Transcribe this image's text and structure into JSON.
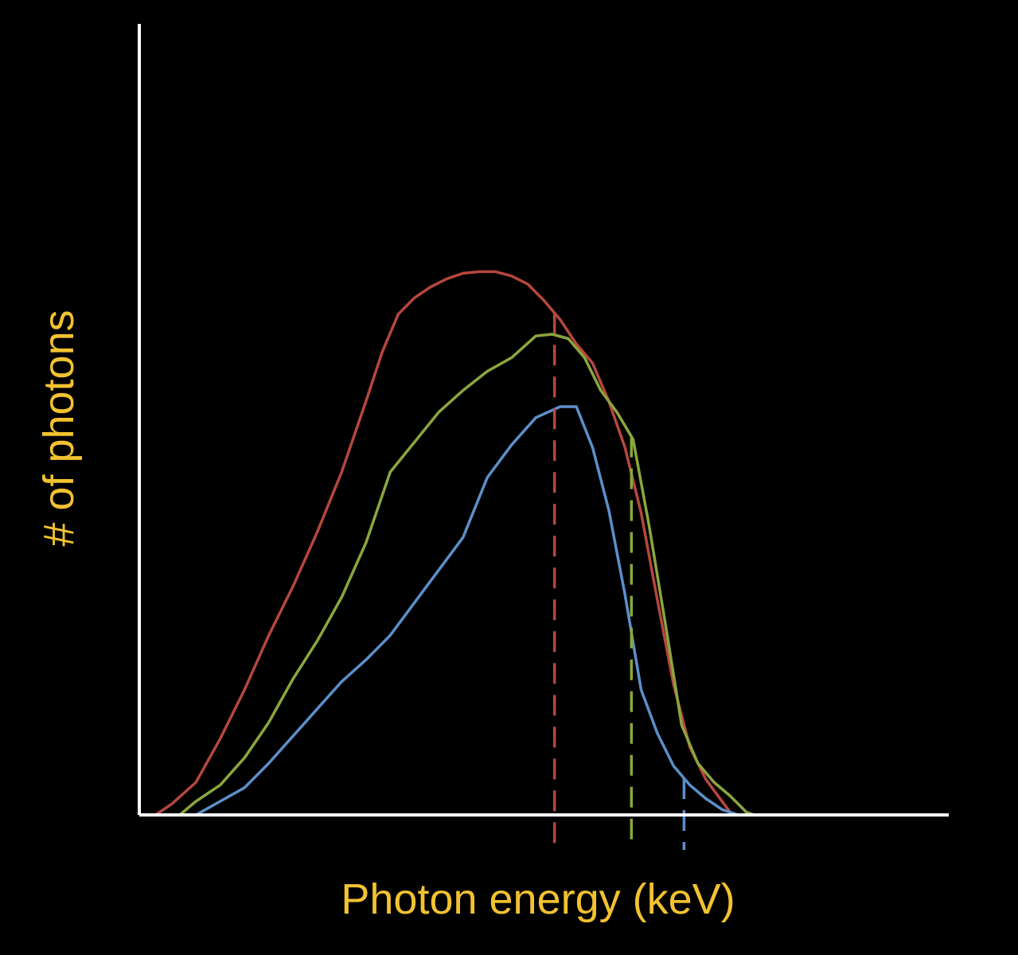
{
  "chart_data": {
    "type": "line",
    "title": "",
    "xlabel": "Photon energy (keV)",
    "ylabel": "# of photons",
    "xlim": [
      0,
      100
    ],
    "ylim": [
      0,
      100
    ],
    "x_ticks_shown": false,
    "y_ticks_shown": false,
    "grid": false,
    "legend": "none",
    "colors": {
      "background": "#000000",
      "axes": "#ffffff",
      "axis_label": "#f2c230"
    },
    "series": [
      {
        "color": "#b5473f",
        "x": [
          2,
          4,
          7,
          10,
          13,
          16,
          19,
          22,
          25,
          28,
          30,
          32,
          34,
          36,
          38,
          40,
          42,
          44,
          46,
          48,
          50,
          52,
          54,
          56,
          58,
          60,
          62,
          64,
          66,
          68,
          70,
          72,
          73,
          74,
          75,
          76,
          77,
          78,
          79,
          80,
          81,
          82,
          83,
          84,
          86,
          88,
          90,
          92,
          94,
          96
        ],
        "values": [
          0,
          2,
          6,
          14,
          23,
          33,
          42,
          52,
          63,
          76,
          85,
          92,
          95,
          97,
          98.5,
          99.5,
          99.8,
          99.8,
          99,
          97.5,
          94.5,
          91,
          86.5,
          83,
          76,
          67.5,
          55.5,
          39.5,
          24,
          12.5,
          6.5,
          2.5,
          0.5,
          0,
          0,
          0,
          0,
          0,
          0,
          0,
          0,
          0,
          0,
          0,
          0,
          0,
          0,
          0,
          0,
          0
        ],
        "mean_energy": 51.3
      },
      {
        "color": "#8ba63d",
        "x": [
          5,
          7,
          10,
          13,
          16,
          19,
          22,
          25,
          28,
          31,
          34,
          37,
          40,
          43,
          46,
          49,
          51,
          53,
          55,
          57,
          59,
          61,
          63,
          65,
          67,
          69,
          71,
          73,
          74,
          75,
          76,
          77,
          78,
          79,
          80,
          81,
          82,
          83,
          84,
          86,
          88,
          90,
          92,
          94,
          95,
          96
        ],
        "values": [
          0,
          2.5,
          5.5,
          10.5,
          17,
          25,
          32,
          40,
          50,
          63,
          68.5,
          74,
          78,
          81.5,
          84,
          88,
          88.3,
          87.5,
          84,
          78,
          74,
          69,
          53,
          35,
          16.5,
          9.5,
          6,
          3.5,
          2,
          0.5,
          0,
          0,
          0,
          0,
          0,
          0,
          0,
          0,
          0,
          0,
          0,
          0,
          0,
          0,
          0,
          0
        ],
        "mean_energy": 60.8
      },
      {
        "color": "#5b8fc9",
        "x": [
          2,
          7,
          10,
          13,
          16,
          19,
          22,
          25,
          28,
          31,
          34,
          37,
          40,
          43,
          46,
          49,
          52,
          54,
          56,
          58,
          60,
          62,
          64,
          66,
          68,
          70,
          72,
          74,
          76,
          78,
          80,
          82,
          84,
          86,
          88,
          90,
          92,
          94,
          95
        ],
        "values": [
          0,
          0,
          2.5,
          5,
          9.5,
          14.5,
          19.5,
          24.5,
          28.5,
          33,
          39,
          45,
          51,
          62,
          68,
          73,
          75,
          75,
          67.5,
          56,
          40.5,
          23,
          15,
          9,
          5.5,
          3,
          1,
          0,
          0,
          0,
          0,
          0,
          0,
          0,
          0,
          0,
          0,
          0,
          0
        ],
        "mean_energy": 67.3
      }
    ]
  }
}
